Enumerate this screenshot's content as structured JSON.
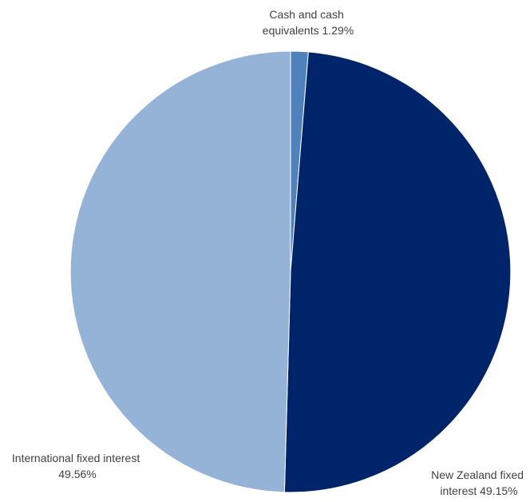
{
  "chart_data": {
    "type": "pie",
    "title": "",
    "slices": [
      {
        "label_lines": [
          "Cash and cash",
          "equivalents 1.29%"
        ],
        "value": 1.29,
        "color": "#4f81bd"
      },
      {
        "label_lines": [
          "New Zealand fixed",
          "interest 49.15%"
        ],
        "value": 49.15,
        "color": "#002469"
      },
      {
        "label_lines": [
          "International fixed interest",
          "49.56%"
        ],
        "value": 49.56,
        "color": "#95b3d7"
      }
    ],
    "start_angle_deg": 0,
    "direction": "clockwise",
    "legend": "none",
    "labels": "outside"
  }
}
